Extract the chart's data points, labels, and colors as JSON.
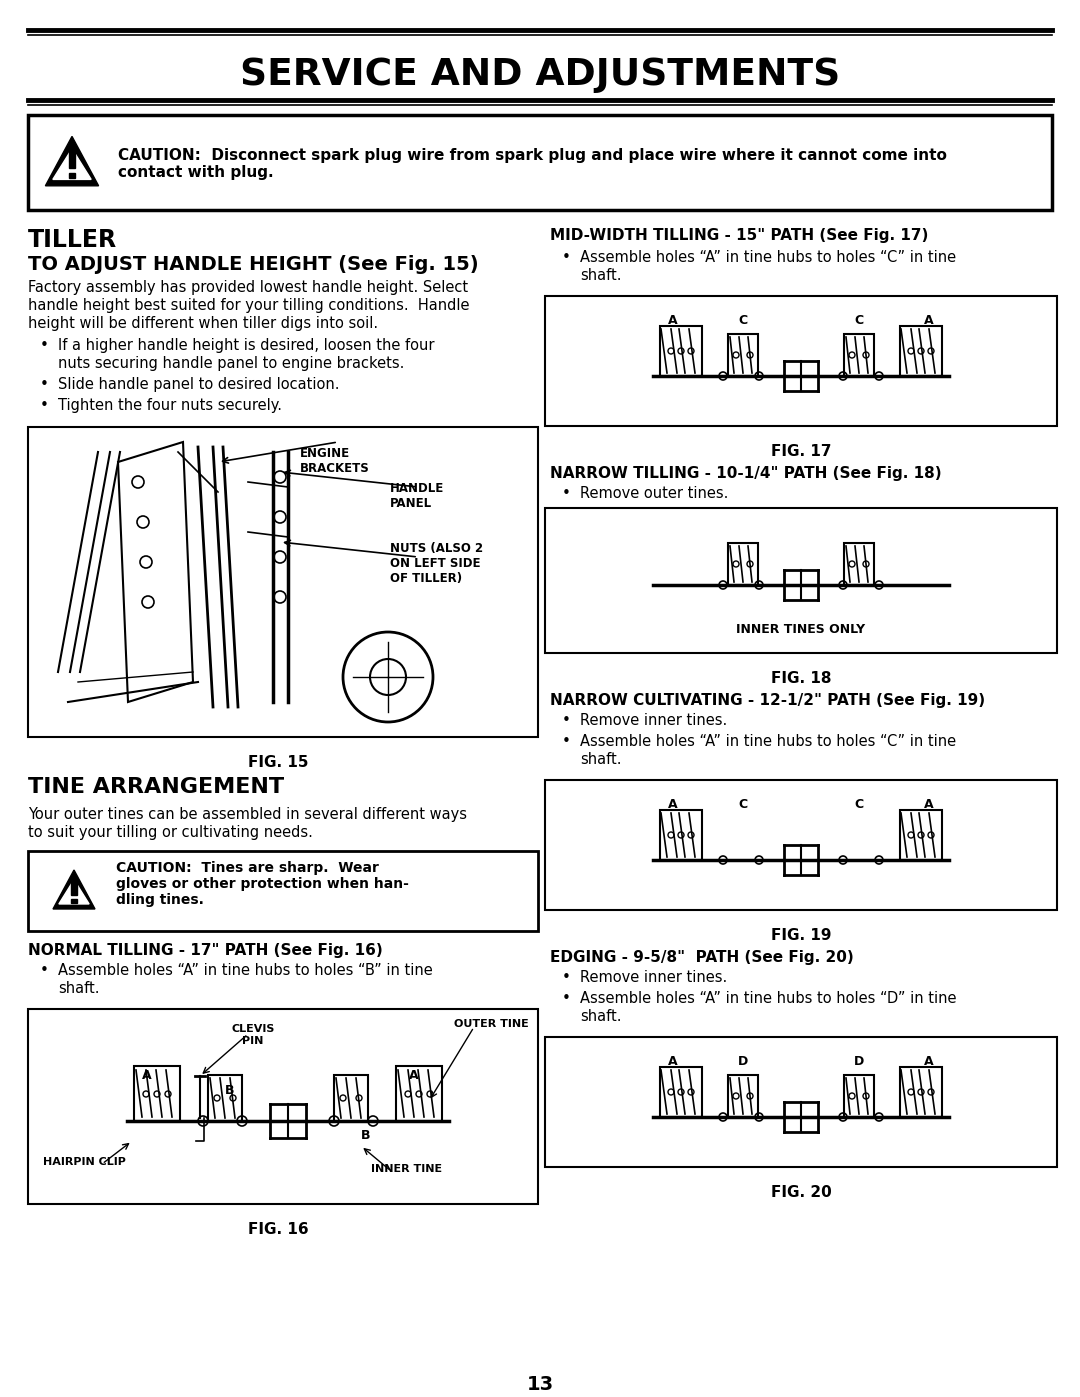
{
  "title": "SERVICE AND ADJUSTMENTS",
  "bg_color": "#ffffff",
  "page_number": "13",
  "caution1_text_line1": "CAUTION:  Disconnect spark plug wire from spark plug and place wire where it cannot come into",
  "caution1_text_line2": "contact with plug.",
  "section_tiller": "TILLER",
  "sub_handle": "TO ADJUST HANDLE HEIGHT (See Fig. 15)",
  "handle_body_lines": [
    "Factory assembly has provided lowest handle height. Select",
    "handle height best suited for your tilling conditions.  Handle",
    "height will be different when tiller digs into soil."
  ],
  "handle_bullets": [
    [
      "If a higher handle height is desired, loosen the four",
      "nuts securing handle panel to engine brackets."
    ],
    [
      "Slide handle panel to desired location."
    ],
    [
      "Tighten the four nuts securely."
    ]
  ],
  "fig15_label": "ENGINE\nBRACKETS",
  "fig15_label2": "HANDLE\nPANEL",
  "fig15_label3": "NUTS (ALSO 2\nON LEFT SIDE\nOF TILLER)",
  "fig15_caption": "FIG. 15",
  "section_tine": "TINE ARRANGEMENT",
  "tine_body_lines": [
    "Your outer tines can be assembled in several different ways",
    "to suit your tilling or cultivating needs."
  ],
  "caution2_line1": "CAUTION:  Tines are sharp.  Wear",
  "caution2_line2": "gloves or other protection when han-",
  "caution2_line3": "dling tines.",
  "normal_head": "NORMAL TILLING - 17\" PATH (See Fig. 16)",
  "normal_bullet_lines": [
    "Assemble holes “A” in tine hubs to holes “B” in tine",
    "shaft."
  ],
  "fig16_caption": "FIG. 16",
  "mid_head": "MID-WIDTH TILLING - 15\" PATH (See Fig. 17)",
  "mid_bullet_lines": [
    "Assemble holes “A” in tine hubs to holes “C” in tine",
    "shaft."
  ],
  "fig17_caption": "FIG. 17",
  "narrow_till_head": "NARROW TILLING - 10-1/4\" PATH (See Fig. 18)",
  "narrow_till_bullet": "Remove outer tines.",
  "fig18_caption": "FIG. 18",
  "fig18_inner_label": "INNER TINES ONLY",
  "narrow_cult_head": "NARROW CULTIVATING - 12-1/2\" PATH (See Fig. 19)",
  "narrow_cult_bullets": [
    [
      "Remove inner tines."
    ],
    [
      "Assemble holes “A” in tine hubs to holes “C” in tine",
      "shaft."
    ]
  ],
  "fig19_caption": "FIG. 19",
  "edging_head": "EDGING - 9-5/8\"  PATH (See Fig. 20)",
  "edging_bullets": [
    [
      "Remove inner tines."
    ],
    [
      "Assemble holes “A” in tine hubs to holes “D” in tine",
      "shaft."
    ]
  ],
  "fig20_caption": "FIG. 20",
  "fig17_letters": [
    "A",
    "C",
    "C",
    "A"
  ],
  "fig18_letters": [],
  "fig19_letters": [
    "A",
    "C",
    "C",
    "A"
  ],
  "fig20_letters": [
    "A",
    "D",
    "D",
    "A"
  ],
  "fig16_letters_top": [
    "A",
    "B",
    "A"
  ],
  "fig16_letters_bot": [
    "B"
  ]
}
